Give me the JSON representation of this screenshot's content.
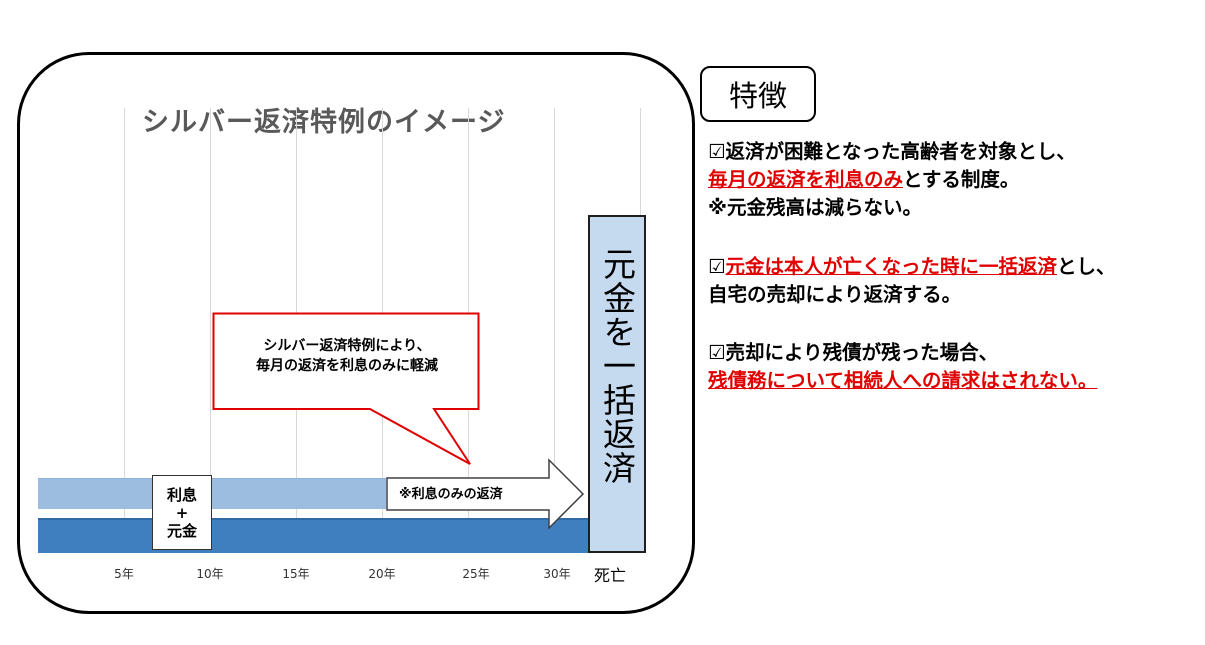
{
  "diagram": {
    "title": "シルバー返済特例のイメージ",
    "year_ticks": [
      "5年",
      "10年",
      "15年",
      "20年",
      "25年",
      "30年"
    ],
    "death_label": "死亡",
    "principal_box": {
      "line1": "利息",
      "line2": "+",
      "line3": "元金"
    },
    "interest_only_arrow_label": "※利息のみの返済",
    "lump_sum_label": "元金を一括返済",
    "callout": {
      "line1": "シルバー返済特例により、",
      "line2": "毎月の返済を利息のみに軽減"
    },
    "colors": {
      "light_bar": "#9cbce0",
      "dark_bar": "#3f7fc0",
      "lump_box": "#c5d9ef",
      "callout_border": "#e00000"
    }
  },
  "features": {
    "heading": "特徴",
    "checkbox_icon": "☑",
    "items": [
      {
        "line1": "返済が困難となった高齢者を対象とし、",
        "line2_red": "毎月の返済を利息のみ",
        "line2_rest": "とする制度。",
        "line3": "※元金残高は減らない。"
      },
      {
        "line1_red": "元金は本人が亡くなった時に一括返済",
        "line1_rest": "とし、",
        "line2": "自宅の売却により返済する。"
      },
      {
        "line1": "売却により残債が残った場合、",
        "line2_red": "残債務について相続人への請求はされない。"
      }
    ],
    "accent_color": "#e00000"
  }
}
